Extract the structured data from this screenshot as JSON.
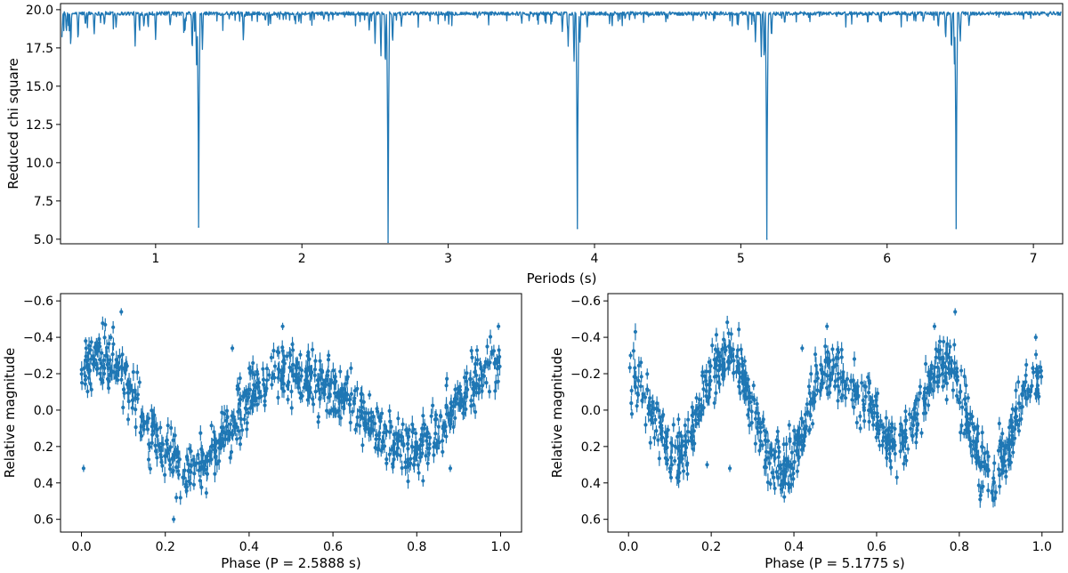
{
  "chart_data": [
    {
      "type": "line",
      "xlabel": "Periods (s)",
      "ylabel": "Reduced chi square",
      "xlim": [
        0.35,
        7.2
      ],
      "ylim": [
        4.7,
        20.4
      ],
      "xticks": [
        1,
        2,
        3,
        4,
        5,
        6,
        7
      ],
      "yticks": [
        5.0,
        7.5,
        10.0,
        12.5,
        15.0,
        17.5,
        20.0
      ],
      "ytick_labels": [
        "5.0",
        "7.5",
        "10.0",
        "12.5",
        "15.0",
        "17.5",
        "20.0"
      ],
      "baseline": 19.75,
      "color": "#1f77b4",
      "deep_minima": [
        {
          "x": 1.294,
          "y": 5.8
        },
        {
          "x": 2.589,
          "y": 4.8
        },
        {
          "x": 3.883,
          "y": 5.7
        },
        {
          "x": 5.178,
          "y": 5.0
        },
        {
          "x": 6.472,
          "y": 5.7
        }
      ],
      "minor_dips": [
        {
          "x": 0.36,
          "y": 18.2
        },
        {
          "x": 0.39,
          "y": 18.4
        },
        {
          "x": 0.42,
          "y": 17.4
        },
        {
          "x": 0.47,
          "y": 17.8
        },
        {
          "x": 0.52,
          "y": 18.9
        },
        {
          "x": 0.58,
          "y": 18.3
        },
        {
          "x": 0.65,
          "y": 18.9
        },
        {
          "x": 0.73,
          "y": 18.8
        },
        {
          "x": 0.86,
          "y": 17.6
        },
        {
          "x": 0.92,
          "y": 18.8
        },
        {
          "x": 1.0,
          "y": 18.0
        },
        {
          "x": 1.1,
          "y": 18.9
        },
        {
          "x": 1.2,
          "y": 18.3
        },
        {
          "x": 1.25,
          "y": 17.0
        },
        {
          "x": 1.28,
          "y": 16.0
        },
        {
          "x": 1.32,
          "y": 17.3
        },
        {
          "x": 1.6,
          "y": 17.8
        },
        {
          "x": 1.75,
          "y": 19.2
        },
        {
          "x": 1.95,
          "y": 19.3
        },
        {
          "x": 2.15,
          "y": 19.3
        },
        {
          "x": 2.46,
          "y": 18.6
        },
        {
          "x": 2.5,
          "y": 17.8
        },
        {
          "x": 2.54,
          "y": 16.8
        },
        {
          "x": 2.57,
          "y": 15.8
        },
        {
          "x": 2.62,
          "y": 17.6
        },
        {
          "x": 2.68,
          "y": 18.9
        },
        {
          "x": 3.2,
          "y": 19.4
        },
        {
          "x": 3.5,
          "y": 19.4
        },
        {
          "x": 3.78,
          "y": 18.5
        },
        {
          "x": 3.82,
          "y": 17.6
        },
        {
          "x": 3.86,
          "y": 16.4
        },
        {
          "x": 3.9,
          "y": 17.6
        },
        {
          "x": 3.95,
          "y": 18.8
        },
        {
          "x": 4.5,
          "y": 19.4
        },
        {
          "x": 5.05,
          "y": 18.7
        },
        {
          "x": 5.1,
          "y": 17.8
        },
        {
          "x": 5.14,
          "y": 16.9
        },
        {
          "x": 5.16,
          "y": 16.3
        },
        {
          "x": 5.21,
          "y": 18.0
        },
        {
          "x": 5.3,
          "y": 19.0
        },
        {
          "x": 5.95,
          "y": 19.2
        },
        {
          "x": 6.25,
          "y": 19.3
        },
        {
          "x": 6.35,
          "y": 18.7
        },
        {
          "x": 6.4,
          "y": 17.9
        },
        {
          "x": 6.44,
          "y": 17.0
        },
        {
          "x": 6.46,
          "y": 16.4
        },
        {
          "x": 6.5,
          "y": 17.8
        },
        {
          "x": 6.56,
          "y": 18.9
        }
      ]
    },
    {
      "type": "scatter",
      "error_bars": true,
      "xlabel": "Phase (P = 2.5888 s)",
      "ylabel": "Relative magnitude",
      "xlim": [
        -0.05,
        1.05
      ],
      "ylim": [
        0.67,
        -0.64
      ],
      "y_inverted": true,
      "xticks": [
        0.0,
        0.2,
        0.4,
        0.6,
        0.8,
        1.0
      ],
      "xtick_labels": [
        "0.0",
        "0.2",
        "0.4",
        "0.6",
        "0.8",
        "1.0"
      ],
      "yticks": [
        -0.6,
        -0.4,
        -0.2,
        0.0,
        0.2,
        0.4,
        0.6
      ],
      "ytick_labels": [
        "−0.6",
        "−0.4",
        "−0.2",
        "0.0",
        "0.2",
        "0.4",
        "0.6"
      ],
      "color": "#1f77b4",
      "n_points": 900,
      "profile": {
        "phase": [
          0.0,
          0.05,
          0.1,
          0.15,
          0.2,
          0.25,
          0.3,
          0.35,
          0.4,
          0.45,
          0.5,
          0.55,
          0.6,
          0.65,
          0.7,
          0.75,
          0.8,
          0.85,
          0.9,
          0.95,
          1.0
        ],
        "magnitude": [
          -0.22,
          -0.28,
          -0.2,
          0.05,
          0.25,
          0.33,
          0.28,
          0.12,
          -0.05,
          -0.18,
          -0.2,
          -0.15,
          -0.12,
          -0.02,
          0.1,
          0.2,
          0.22,
          0.12,
          -0.05,
          -0.2,
          -0.25
        ]
      },
      "outliers": [
        {
          "x": 0.005,
          "y": 0.32
        },
        {
          "x": 0.01,
          "y": -0.38
        },
        {
          "x": 0.07,
          "y": -0.4
        },
        {
          "x": 0.095,
          "y": -0.54
        },
        {
          "x": 0.36,
          "y": -0.34
        },
        {
          "x": 0.48,
          "y": -0.46
        },
        {
          "x": 0.22,
          "y": 0.6
        },
        {
          "x": 0.88,
          "y": 0.32
        },
        {
          "x": 0.995,
          "y": -0.46
        }
      ]
    },
    {
      "type": "scatter",
      "error_bars": true,
      "xlabel": "Phase (P = 5.1775 s)",
      "ylabel": "Relative magnitude",
      "xlim": [
        -0.05,
        1.05
      ],
      "ylim": [
        0.67,
        -0.64
      ],
      "y_inverted": true,
      "xticks": [
        0.0,
        0.2,
        0.4,
        0.6,
        0.8,
        1.0
      ],
      "xtick_labels": [
        "0.0",
        "0.2",
        "0.4",
        "0.6",
        "0.8",
        "1.0"
      ],
      "yticks": [
        -0.6,
        -0.4,
        -0.2,
        0.0,
        0.2,
        0.4,
        0.6
      ],
      "ytick_labels": [
        "−0.6",
        "−0.4",
        "−0.2",
        "0.0",
        "0.2",
        "0.4",
        "0.6"
      ],
      "color": "#1f77b4",
      "n_points": 900,
      "profile": {
        "phase": [
          0.0,
          0.025,
          0.05,
          0.075,
          0.1,
          0.125,
          0.15,
          0.175,
          0.2,
          0.225,
          0.25,
          0.275,
          0.3,
          0.325,
          0.35,
          0.375,
          0.4,
          0.425,
          0.45,
          0.475,
          0.5,
          0.525,
          0.55,
          0.575,
          0.6,
          0.625,
          0.65,
          0.675,
          0.7,
          0.725,
          0.75,
          0.775,
          0.8,
          0.825,
          0.85,
          0.875,
          0.9,
          0.925,
          0.95,
          0.975,
          1.0
        ],
        "magnitude": [
          -0.22,
          -0.15,
          -0.05,
          0.1,
          0.22,
          0.25,
          0.15,
          -0.05,
          -0.2,
          -0.3,
          -0.3,
          -0.2,
          0.0,
          0.18,
          0.3,
          0.32,
          0.25,
          0.1,
          -0.1,
          -0.22,
          -0.22,
          -0.15,
          -0.1,
          -0.05,
          0.05,
          0.18,
          0.22,
          0.15,
          0.0,
          -0.15,
          -0.25,
          -0.25,
          -0.1,
          0.1,
          0.28,
          0.35,
          0.3,
          0.15,
          -0.05,
          -0.15,
          -0.2
        ]
      },
      "outliers": [
        {
          "x": 0.005,
          "y": -0.3
        },
        {
          "x": 0.1,
          "y": 0.32
        },
        {
          "x": 0.19,
          "y": 0.3
        },
        {
          "x": 0.245,
          "y": 0.32
        },
        {
          "x": 0.42,
          "y": -0.34
        },
        {
          "x": 0.48,
          "y": -0.46
        },
        {
          "x": 0.74,
          "y": -0.46
        },
        {
          "x": 0.79,
          "y": -0.54
        },
        {
          "x": 0.985,
          "y": -0.4
        }
      ]
    }
  ]
}
